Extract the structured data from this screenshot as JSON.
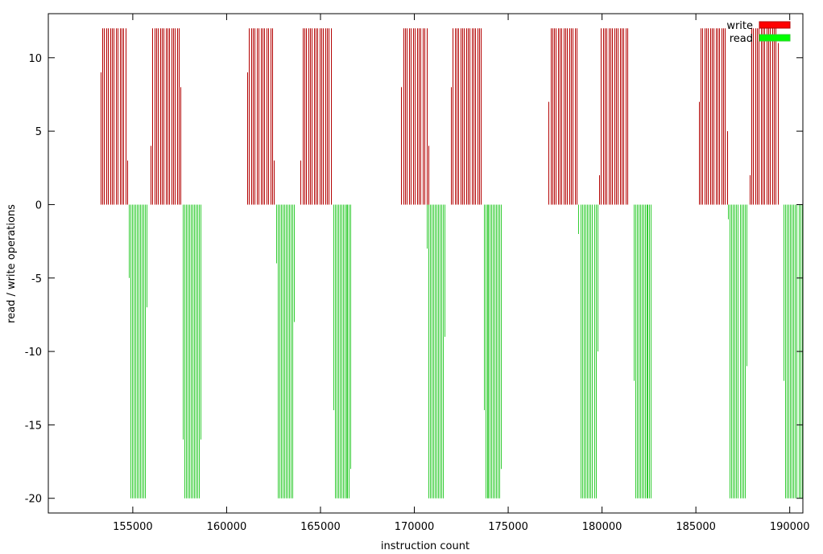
{
  "chart_data": {
    "type": "bar",
    "xlabel": "instruction count",
    "ylabel": "read / write operations",
    "xlim": [
      150500,
      190700
    ],
    "ylim": [
      -21,
      13
    ],
    "x_ticks": [
      155000,
      160000,
      165000,
      170000,
      175000,
      180000,
      185000,
      190000
    ],
    "y_ticks": [
      -20,
      -15,
      -10,
      -5,
      0,
      5,
      10
    ],
    "grid": false,
    "legend_position": "top-right",
    "series": [
      {
        "name": "write",
        "color": "#b30000",
        "legend_color": "#ff0000",
        "bursts": [
          {
            "start": 153270,
            "end": 154710,
            "step": 103,
            "first": 9,
            "last": 3,
            "level": 12
          },
          {
            "start": 155950,
            "end": 157550,
            "step": 100,
            "first": 4,
            "last": 8,
            "level": 12
          },
          {
            "start": 161090,
            "end": 162530,
            "step": 103,
            "first": 9,
            "last": 3,
            "level": 12
          },
          {
            "start": 163950,
            "end": 165550,
            "step": 100,
            "first": 3,
            "last": 12,
            "level": 12
          },
          {
            "start": 169300,
            "end": 170750,
            "step": 104,
            "first": 8,
            "last": 4,
            "level": 12
          },
          {
            "start": 171950,
            "end": 173550,
            "step": 100,
            "first": 8,
            "last": 12,
            "level": 12
          },
          {
            "start": 177150,
            "end": 178650,
            "step": 100,
            "first": 7,
            "last": 12,
            "level": 12
          },
          {
            "start": 179850,
            "end": 181350,
            "step": 100,
            "first": 2,
            "last": 12,
            "level": 12
          },
          {
            "start": 185150,
            "end": 186650,
            "step": 100,
            "first": 7,
            "last": 5,
            "level": 12
          },
          {
            "start": 187850,
            "end": 189350,
            "step": 100,
            "first": 2,
            "last": 11,
            "level": 12
          }
        ]
      },
      {
        "name": "read",
        "color": "#33cc33",
        "legend_color": "#00ff00",
        "bursts": [
          {
            "start": 154800,
            "end": 155750,
            "step": 86,
            "first": -5,
            "last": -7,
            "level": -20
          },
          {
            "start": 157650,
            "end": 158600,
            "step": 86,
            "first": -16,
            "last": -16,
            "level": -20
          },
          {
            "start": 162650,
            "end": 163600,
            "step": 86,
            "first": -4,
            "last": -8,
            "level": -20
          },
          {
            "start": 165700,
            "end": 166600,
            "step": 82,
            "first": -14,
            "last": -18,
            "level": -20
          },
          {
            "start": 170650,
            "end": 171600,
            "step": 86,
            "first": -3,
            "last": -9,
            "level": -20
          },
          {
            "start": 173700,
            "end": 174600,
            "step": 82,
            "first": -14,
            "last": -18,
            "level": -20
          },
          {
            "start": 178750,
            "end": 179750,
            "step": 91,
            "first": -2,
            "last": -10,
            "level": -20
          },
          {
            "start": 181700,
            "end": 182600,
            "step": 82,
            "first": -12,
            "last": -20,
            "level": -20
          },
          {
            "start": 186700,
            "end": 187700,
            "step": 91,
            "first": -1,
            "last": -11,
            "level": -20
          },
          {
            "start": 189650,
            "end": 190650,
            "step": 91,
            "first": -12,
            "last": -20,
            "level": -20
          }
        ]
      }
    ]
  }
}
